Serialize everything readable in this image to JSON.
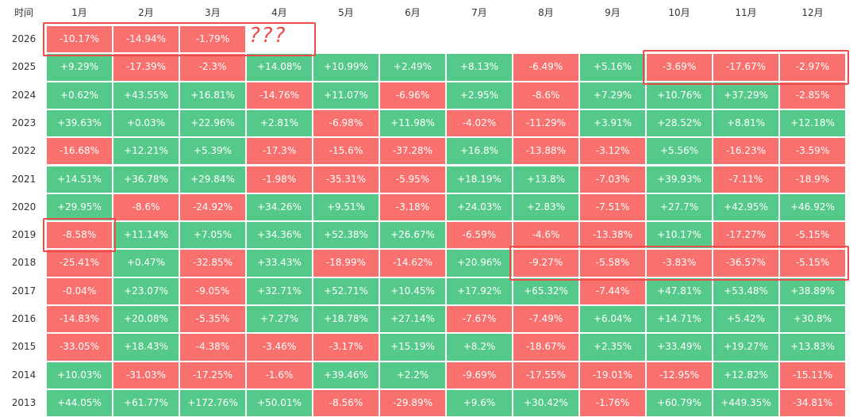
{
  "chart_data": {
    "type": "heatmap",
    "corner_label": "时间",
    "columns": [
      "1月",
      "2月",
      "3月",
      "4月",
      "5月",
      "6月",
      "7月",
      "8月",
      "9月",
      "10月",
      "11月",
      "12月"
    ],
    "rows": [
      {
        "year": "2026",
        "values": [
          "-10.17%",
          "-14.94%",
          "-1.79%",
          null,
          null,
          null,
          null,
          null,
          null,
          null,
          null,
          null
        ]
      },
      {
        "year": "2025",
        "values": [
          "+9.29%",
          "-17.39%",
          "-2.3%",
          "+14.08%",
          "+10.99%",
          "+2.49%",
          "+8.13%",
          "-6.49%",
          "+5.16%",
          "-3.69%",
          "-17.67%",
          "-2.97%"
        ]
      },
      {
        "year": "2024",
        "values": [
          "+0.62%",
          "+43.55%",
          "+16.81%",
          "-14.76%",
          "+11.07%",
          "-6.96%",
          "+2.95%",
          "-8.6%",
          "+7.29%",
          "+10.76%",
          "+37.29%",
          "-2.85%"
        ]
      },
      {
        "year": "2023",
        "values": [
          "+39.63%",
          "+0.03%",
          "+22.96%",
          "+2.81%",
          "-6.98%",
          "+11.98%",
          "-4.02%",
          "-11.29%",
          "+3.91%",
          "+28.52%",
          "+8.81%",
          "+12.18%"
        ]
      },
      {
        "year": "2022",
        "values": [
          "-16.68%",
          "+12.21%",
          "+5.39%",
          "-17.3%",
          "-15.6%",
          "-37.28%",
          "+16.8%",
          "-13.88%",
          "-3.12%",
          "+5.56%",
          "-16.23%",
          "-3.59%"
        ]
      },
      {
        "year": "2021",
        "values": [
          "+14.51%",
          "+36.78%",
          "+29.84%",
          "-1.98%",
          "-35.31%",
          "-5.95%",
          "+18.19%",
          "+13.8%",
          "-7.03%",
          "+39.93%",
          "-7.11%",
          "-18.9%"
        ]
      },
      {
        "year": "2020",
        "values": [
          "+29.95%",
          "-8.6%",
          "-24.92%",
          "+34.26%",
          "+9.51%",
          "-3.18%",
          "+24.03%",
          "+2.83%",
          "-7.51%",
          "+27.7%",
          "+42.95%",
          "+46.92%"
        ]
      },
      {
        "year": "2019",
        "values": [
          "-8.58%",
          "+11.14%",
          "+7.05%",
          "+34.36%",
          "+52.38%",
          "+26.67%",
          "-6.59%",
          "-4.6%",
          "-13.38%",
          "+10.17%",
          "-17.27%",
          "-5.15%"
        ]
      },
      {
        "year": "2018",
        "values": [
          "-25.41%",
          "+0.47%",
          "-32.85%",
          "+33.43%",
          "-18.99%",
          "-14.62%",
          "+20.96%",
          "-9.27%",
          "-5.58%",
          "-3.83%",
          "-36.57%",
          "-5.15%"
        ]
      },
      {
        "year": "2017",
        "values": [
          "-0.04%",
          "+23.07%",
          "-9.05%",
          "+32.71%",
          "+52.71%",
          "+10.45%",
          "+17.92%",
          "+65.32%",
          "-7.44%",
          "+47.81%",
          "+53.48%",
          "+38.89%"
        ]
      },
      {
        "year": "2016",
        "values": [
          "-14.83%",
          "+20.08%",
          "-5.35%",
          "+7.27%",
          "+18.78%",
          "+27.14%",
          "-7.67%",
          "-7.49%",
          "+6.04%",
          "+14.71%",
          "+5.42%",
          "+30.8%"
        ]
      },
      {
        "year": "2015",
        "values": [
          "-33.05%",
          "+18.43%",
          "-4.38%",
          "-3.46%",
          "-3.17%",
          "+15.19%",
          "+8.2%",
          "-18.67%",
          "+2.35%",
          "+33.49%",
          "+19.27%",
          "+13.83%"
        ]
      },
      {
        "year": "2014",
        "values": [
          "+10.03%",
          "-31.03%",
          "-17.25%",
          "-1.6%",
          "+39.46%",
          "+2.2%",
          "-9.69%",
          "-17.55%",
          "-19.01%",
          "-12.95%",
          "+12.82%",
          "-15.11%"
        ]
      },
      {
        "year": "2013",
        "values": [
          "+44.05%",
          "+61.77%",
          "+172.76%",
          "+50.01%",
          "-8.56%",
          "-29.89%",
          "+9.6%",
          "+30.42%",
          "-1.76%",
          "+60.79%",
          "+449.35%",
          "-34.81%"
        ]
      }
    ],
    "colors": {
      "positive": "#55c98a",
      "negative": "#f8716f",
      "highlight": "#ee4b4b"
    },
    "annotations": [
      {
        "type": "box",
        "row_from": "2026",
        "row_to": "2026",
        "col_from": "1月",
        "col_to": "4月"
      },
      {
        "type": "text",
        "text": "???",
        "row": "2026",
        "col": "4月"
      },
      {
        "type": "box",
        "row_from": "2025",
        "row_to": "2025",
        "col_from": "10月",
        "col_to": "12月"
      },
      {
        "type": "box",
        "row_from": "2019",
        "row_to": "2019",
        "col_from": "1月",
        "col_to": "1月"
      },
      {
        "type": "box",
        "row_from": "2018",
        "row_to": "2018",
        "col_from": "8月",
        "col_to": "12月"
      }
    ]
  }
}
